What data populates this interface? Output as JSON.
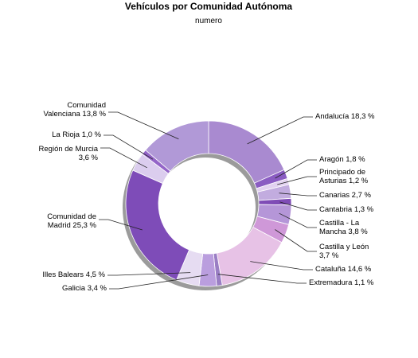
{
  "chart_data": {
    "type": "pie",
    "variant": "donut",
    "title": "Vehículos por Comunidad Autónoma",
    "subtitle": "numero",
    "slices": [
      {
        "name": "Andalucía",
        "value": 18.3,
        "label": "Andalucía 18,3 %",
        "color": "#a98ad0"
      },
      {
        "name": "Aragón",
        "value": 1.8,
        "label": "Aragón 1,8 %",
        "color": "#8a5cc2"
      },
      {
        "name": "Principado de Asturias",
        "value": 1.2,
        "label": "Principado de\nAsturias 1,2 %",
        "color": "#e2d2f0"
      },
      {
        "name": "Canarias",
        "value": 2.7,
        "label": "Canarias 2,7 %",
        "color": "#c2acdf"
      },
      {
        "name": "Cantabria",
        "value": 1.3,
        "label": "Cantabria 1,3 %",
        "color": "#7f4cb6"
      },
      {
        "name": "Castilla - La Mancha",
        "value": 3.8,
        "label": "Castilla - La\nMancha 3,8 %",
        "color": "#b596d8"
      },
      {
        "name": "Castilla y León",
        "value": 3.7,
        "label": "Castilla y León\n3,7 %",
        "color": "#cf98d8"
      },
      {
        "name": "Cataluña",
        "value": 14.6,
        "label": "Cataluña 14,6 %",
        "color": "#e7c2e6"
      },
      {
        "name": "Extremadura",
        "value": 1.1,
        "label": "Extremadura 1,1 %",
        "color": "#9a7ec4"
      },
      {
        "name": "Galicia",
        "value": 3.4,
        "label": "Galicia 3,4 %",
        "color": "#ba9ede"
      },
      {
        "name": "Illes Balears",
        "value": 4.5,
        "label": "Illes Balears 4,5 %",
        "color": "#e6dcf2"
      },
      {
        "name": "Comunidad de Madrid",
        "value": 25.3,
        "label": "Comunidad de\nMadrid 25,3 %",
        "color": "#7e4cb8"
      },
      {
        "name": "Región de Murcia",
        "value": 3.6,
        "label": "Región de Murcia\n3,6 %",
        "color": "#dbcdee"
      },
      {
        "name": "La Rioja",
        "value": 1.0,
        "label": "La Rioja 1,0 %",
        "color": "#9465c8"
      },
      {
        "name": "Comunidad Valenciana",
        "value": 13.8,
        "label": "Comunidad\nValenciana 13,8 %",
        "color": "#b199d7"
      }
    ]
  }
}
